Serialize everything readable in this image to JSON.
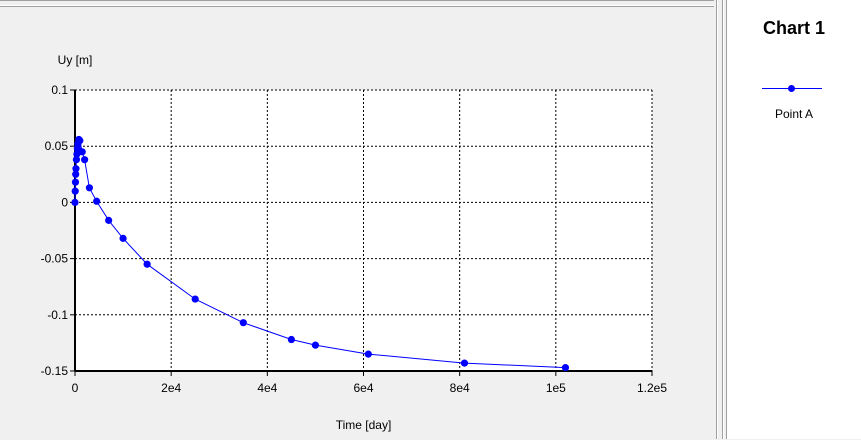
{
  "legend": {
    "title": "Chart 1",
    "series_label": "Point A"
  },
  "colors": {
    "series": "#0000ff",
    "grid": "#000000"
  },
  "chart_data": {
    "type": "line",
    "xlabel": "Time [day]",
    "ylabel": "Uy [m]",
    "xlim": [
      0,
      120000
    ],
    "ylim": [
      -0.15,
      0.1
    ],
    "x_ticks": [
      0,
      20000,
      40000,
      60000,
      80000,
      100000,
      120000
    ],
    "x_tick_labels": [
      "0",
      "2e4",
      "4e4",
      "6e4",
      "8e4",
      "1e5",
      "1.2e5"
    ],
    "y_ticks": [
      -0.15,
      -0.1,
      -0.05,
      0,
      0.05,
      0.1
    ],
    "y_tick_labels": [
      "-0.15",
      "-0.1",
      "-0.05",
      "0",
      "0.05",
      "0.1"
    ],
    "grid": true,
    "legend_position": "right",
    "series": [
      {
        "name": "Point A",
        "x": [
          0,
          50,
          100,
          150,
          200,
          300,
          400,
          500,
          600,
          800,
          1000,
          1500,
          2000,
          3000,
          4500,
          7000,
          10000,
          15000,
          25000,
          35000,
          45000,
          50000,
          61000,
          81000,
          102000
        ],
        "y": [
          0,
          0.01,
          0.018,
          0.025,
          0.03,
          0.038,
          0.043,
          0.048,
          0.052,
          0.056,
          0.055,
          0.045,
          0.038,
          0.013,
          0.001,
          -0.016,
          -0.032,
          -0.055,
          -0.086,
          -0.107,
          -0.122,
          -0.127,
          -0.135,
          -0.143,
          -0.147
        ]
      }
    ]
  }
}
